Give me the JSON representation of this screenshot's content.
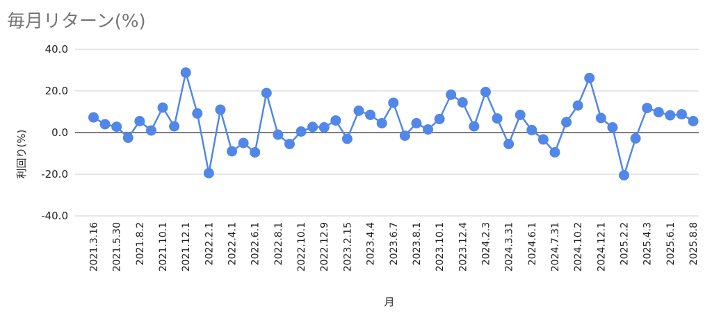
{
  "chart_data": {
    "type": "line",
    "title": "毎月リターン(%)",
    "xlabel": "月",
    "ylabel": "利回り(%)",
    "ylim": [
      -40,
      40
    ],
    "yticks": [
      "40.0",
      "20.0",
      "0.0",
      "-20.0",
      "-40.0"
    ],
    "grid": true,
    "color": "#5087e8",
    "x_tick_labels": [
      "2021.3.16",
      "2021.5.30",
      "2021.8.2",
      "2021.10.1",
      "2021.12.1",
      "2022.2.1",
      "2022.4.1",
      "2022.6.1",
      "2022.8.1",
      "2022.10.1",
      "2022.12.9",
      "2023.2.15",
      "2023.4.4",
      "2023.6.7",
      "2023.8.1",
      "2023.10.1",
      "2023.12.4",
      "2024.2.3",
      "2024.3.31",
      "2024.6.1",
      "2024.7.31",
      "2024.10.2",
      "2024.12.1",
      "2025.2.2",
      "2025.4.3",
      "2025.6.1",
      "2025.8.8"
    ],
    "values": [
      7.3,
      4.0,
      2.8,
      -2.5,
      5.5,
      1.0,
      12.0,
      3.0,
      28.8,
      9.2,
      -19.5,
      11.0,
      -9.0,
      -5.0,
      -9.5,
      19.0,
      -1.0,
      -5.5,
      0.5,
      2.7,
      2.5,
      5.8,
      -3.0,
      10.5,
      8.5,
      4.5,
      14.3,
      -1.5,
      4.5,
      1.5,
      6.5,
      18.2,
      14.5,
      3.0,
      19.5,
      6.8,
      -5.5,
      8.5,
      1.2,
      -3.3,
      -9.5,
      5.0,
      13.0,
      26.2,
      7.0,
      2.5,
      -20.5,
      -2.8,
      11.8,
      9.8,
      8.3,
      8.8,
      5.5
    ]
  }
}
